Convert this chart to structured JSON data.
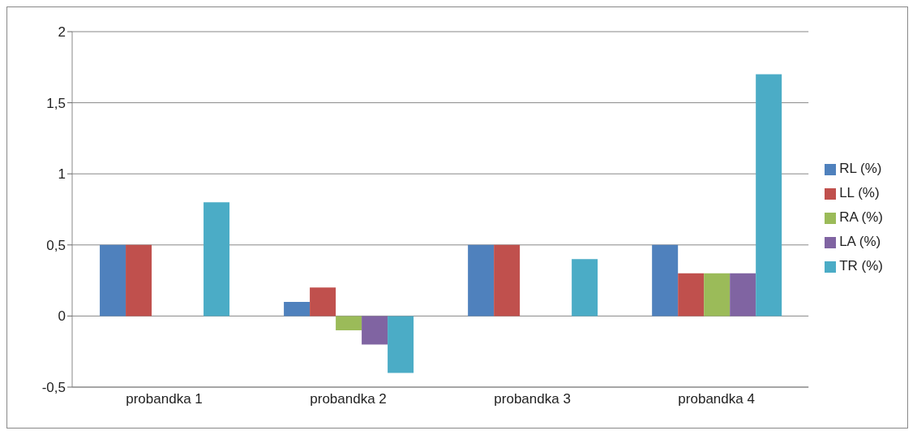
{
  "chart_data": {
    "type": "bar",
    "categories": [
      "probandka 1",
      "probandka 2",
      "probandka 3",
      "probandka 4"
    ],
    "series": [
      {
        "name": "RL (%)",
        "color": "#4f81bd",
        "values": [
          0.5,
          0.1,
          0.5,
          0.5
        ]
      },
      {
        "name": "LL (%)",
        "color": "#c0504d",
        "values": [
          0.5,
          0.2,
          0.5,
          0.3
        ]
      },
      {
        "name": "RA (%)",
        "color": "#9bbb59",
        "values": [
          0,
          -0.1,
          0,
          0.3
        ]
      },
      {
        "name": "LA (%)",
        "color": "#8064a2",
        "values": [
          0,
          -0.2,
          0,
          0.3
        ]
      },
      {
        "name": "TR (%)",
        "color": "#4bacc6",
        "values": [
          0.8,
          -0.4,
          0.4,
          1.7
        ]
      }
    ],
    "ylim": [
      -0.5,
      2
    ],
    "yticks": [
      {
        "value": -0.5,
        "label": "-0,5"
      },
      0,
      {
        "value": 0.5,
        "label": "0,5"
      },
      1,
      {
        "value": 1.5,
        "label": "1,5"
      },
      2
    ],
    "grid": "y",
    "legend": "right"
  }
}
